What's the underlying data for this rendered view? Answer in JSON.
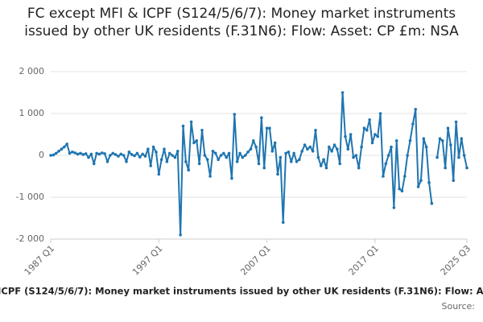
{
  "chart_data": {
    "type": "line",
    "title": "FC except MFI & ICPF (S124/5/6/7): Money market instruments issued by other UK residents (F.31N6): Flow: Asset: CP £m: NSA",
    "source": "Source:",
    "categories": [
      "1987 Q1",
      null,
      null,
      null,
      null,
      null,
      null,
      null,
      null,
      null,
      null,
      null,
      null,
      null,
      null,
      null,
      null,
      null,
      null,
      null,
      null,
      null,
      null,
      null,
      null,
      null,
      null,
      null,
      null,
      null,
      null,
      null,
      null,
      null,
      null,
      null,
      null,
      null,
      null,
      null,
      "1997 Q1",
      null,
      null,
      null,
      null,
      null,
      null,
      null,
      null,
      null,
      null,
      null,
      null,
      null,
      null,
      null,
      null,
      null,
      null,
      null,
      null,
      null,
      null,
      null,
      null,
      null,
      null,
      null,
      null,
      null,
      null,
      null,
      null,
      null,
      null,
      null,
      null,
      null,
      null,
      null,
      "2007 Q1",
      null,
      null,
      null,
      null,
      null,
      null,
      null,
      null,
      null,
      null,
      null,
      null,
      null,
      null,
      null,
      null,
      null,
      null,
      null,
      null,
      null,
      null,
      null,
      null,
      null,
      null,
      null,
      null,
      null,
      null,
      null,
      null,
      null,
      null,
      null,
      null,
      null,
      null,
      null,
      "2017 Q1",
      null,
      null,
      null,
      null,
      null,
      null,
      null,
      null,
      null,
      null,
      null,
      null,
      null,
      null,
      null,
      null,
      null,
      null,
      null,
      null,
      null,
      null,
      null,
      null,
      null,
      null,
      null,
      null,
      null,
      null,
      null,
      null,
      null,
      "2025 Q3"
    ],
    "series": [
      {
        "name": "FC except MFI & ICPF (S124/5/6/7): Money market instruments issued by other UK residents (F.31N6): Flow: Asset: CP £m: NSA",
        "color": "#1f75b0",
        "values": [
          0,
          10,
          50,
          100,
          150,
          200,
          270,
          50,
          80,
          60,
          30,
          50,
          20,
          40,
          -50,
          30,
          -200,
          50,
          30,
          60,
          40,
          -150,
          0,
          50,
          20,
          -20,
          30,
          0,
          -150,
          80,
          20,
          -10,
          50,
          -40,
          30,
          -20,
          150,
          -250,
          200,
          80,
          -450,
          -100,
          150,
          -150,
          50,
          0,
          -50,
          100,
          -1900,
          700,
          -150,
          -350,
          800,
          300,
          350,
          -200,
          600,
          0,
          -100,
          -500,
          100,
          50,
          -100,
          0,
          50,
          -50,
          50,
          -550,
          980,
          -150,
          50,
          -50,
          0,
          80,
          150,
          350,
          200,
          -200,
          900,
          -300,
          650,
          650,
          100,
          300,
          -450,
          -50,
          -1600,
          50,
          80,
          -150,
          50,
          -150,
          -100,
          100,
          250,
          150,
          200,
          100,
          600,
          -50,
          -250,
          -100,
          -300,
          200,
          100,
          250,
          150,
          -200,
          1500,
          450,
          150,
          500,
          -50,
          0,
          -300,
          200,
          650,
          600,
          850,
          300,
          500,
          450,
          1000,
          -500,
          -200,
          0,
          200,
          -1250,
          350,
          -800,
          -850,
          -500,
          0,
          350,
          750,
          1100,
          -750,
          -600,
          400,
          200,
          -650,
          -1150,
          null,
          -50,
          400,
          350,
          -300,
          650,
          250,
          -600,
          800,
          -50,
          400,
          0,
          -300
        ]
      }
    ],
    "ylim": [
      -2000,
      2000
    ],
    "yticks": [
      {
        "value": -2000,
        "label": "-2 000"
      },
      {
        "value": -1000,
        "label": "-1 000"
      },
      0,
      {
        "value": 1000,
        "label": "1 000"
      },
      {
        "value": 2000,
        "label": "2 000"
      }
    ],
    "grid": true
  }
}
